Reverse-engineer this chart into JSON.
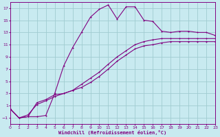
{
  "bg_color": "#c8eaf0",
  "grid_color": "#a0ccd0",
  "line_color": "#800080",
  "xlabel": "Windchill (Refroidissement éolien,°C)",
  "xlim": [
    0,
    23
  ],
  "ylim": [
    -2,
    18
  ],
  "xticks": [
    0,
    1,
    2,
    3,
    4,
    5,
    6,
    7,
    8,
    9,
    10,
    11,
    12,
    13,
    14,
    15,
    16,
    17,
    18,
    19,
    20,
    21,
    22,
    23
  ],
  "yticks": [
    -1,
    1,
    3,
    5,
    7,
    9,
    11,
    13,
    15,
    17
  ],
  "line1_x": [
    0,
    1,
    2,
    3,
    4,
    5,
    6,
    7,
    8,
    9,
    10,
    11,
    12,
    13,
    14,
    15,
    16,
    17,
    18,
    19,
    20,
    21,
    22,
    23
  ],
  "line1_y": [
    0.5,
    -1.0,
    -0.8,
    -0.8,
    -0.6,
    3.0,
    7.5,
    10.5,
    13.0,
    15.5,
    16.8,
    17.5,
    15.2,
    17.2,
    17.2,
    15.0,
    14.8,
    13.2,
    13.0,
    13.2,
    13.2,
    13.0,
    13.0,
    12.5
  ],
  "line2_x": [
    0,
    1,
    2,
    3,
    4,
    5,
    6,
    7,
    8,
    9,
    10,
    11,
    12,
    13,
    14,
    15,
    16,
    17,
    18,
    19,
    20,
    21,
    22,
    23
  ],
  "line2_y": [
    0.5,
    -1.0,
    -0.8,
    1.5,
    2.0,
    2.8,
    3.0,
    3.5,
    4.5,
    5.5,
    6.5,
    7.8,
    9.0,
    10.0,
    11.0,
    11.5,
    11.8,
    12.0,
    12.0,
    12.0,
    12.0,
    12.0,
    12.0,
    12.0
  ],
  "line3_x": [
    0,
    1,
    2,
    3,
    4,
    5,
    6,
    7,
    8,
    9,
    10,
    11,
    12,
    13,
    14,
    15,
    16,
    17,
    18,
    19,
    20,
    21,
    22,
    23
  ],
  "line3_y": [
    0.5,
    -1.0,
    -0.5,
    1.2,
    1.8,
    2.5,
    3.0,
    3.5,
    4.0,
    4.8,
    5.8,
    7.0,
    8.3,
    9.3,
    10.3,
    10.8,
    11.0,
    11.3,
    11.5,
    11.5,
    11.5,
    11.5,
    11.5,
    11.5
  ]
}
